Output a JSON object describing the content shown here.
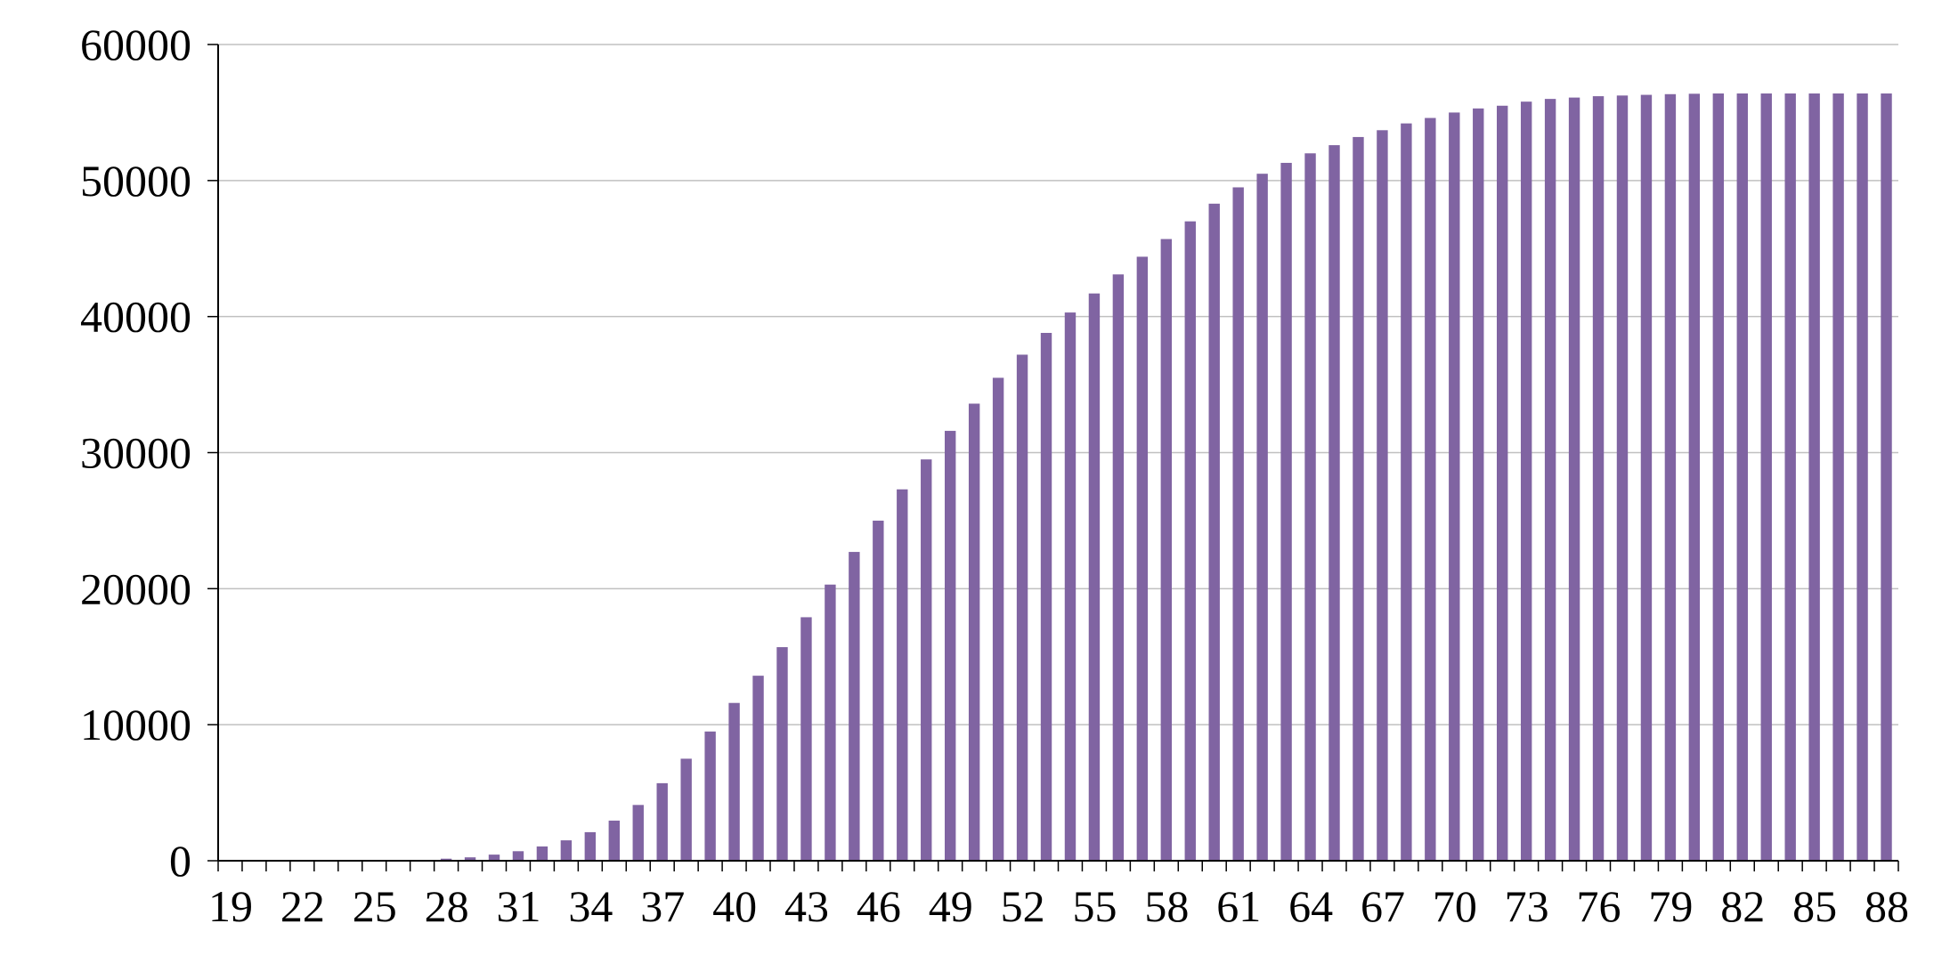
{
  "chart_data": {
    "type": "bar",
    "title": "",
    "xlabel": "",
    "ylabel": "",
    "x": [
      19,
      20,
      21,
      22,
      23,
      24,
      25,
      26,
      27,
      28,
      29,
      30,
      31,
      32,
      33,
      34,
      35,
      36,
      37,
      38,
      39,
      40,
      41,
      42,
      43,
      44,
      45,
      46,
      47,
      48,
      49,
      50,
      51,
      52,
      53,
      54,
      55,
      56,
      57,
      58,
      59,
      60,
      61,
      62,
      63,
      64,
      65,
      66,
      67,
      68,
      69,
      70,
      71,
      72,
      73,
      74,
      75,
      76,
      77,
      78,
      79,
      80,
      81,
      82,
      83,
      84,
      85,
      86,
      87,
      88
    ],
    "x_tick_labels": [
      "19",
      "22",
      "25",
      "28",
      "31",
      "34",
      "37",
      "40",
      "43",
      "46",
      "49",
      "52",
      "55",
      "58",
      "61",
      "64",
      "67",
      "70",
      "73",
      "76",
      "79",
      "82",
      "85",
      "88"
    ],
    "values": [
      0,
      0,
      0,
      0,
      0,
      0,
      0,
      0,
      0,
      150,
      250,
      450,
      700,
      1050,
      1500,
      2100,
      2950,
      4100,
      5700,
      7500,
      9500,
      11600,
      13600,
      15700,
      17900,
      20300,
      22700,
      25000,
      27300,
      29500,
      31600,
      33600,
      35500,
      37200,
      38800,
      40300,
      41700,
      43100,
      44400,
      45700,
      47000,
      48300,
      49500,
      50500,
      51300,
      52000,
      52600,
      53200,
      53700,
      54200,
      54600,
      55000,
      55300,
      55500,
      55800,
      56000,
      56100,
      56200,
      56250,
      56300,
      56350,
      56380,
      56400,
      56400,
      56400,
      56400,
      56400,
      56400,
      56400,
      56400
    ],
    "y_ticks": [
      0,
      10000,
      20000,
      30000,
      40000,
      50000,
      60000
    ],
    "ylim": [
      0,
      60000
    ],
    "grid": true,
    "legend": "none",
    "colors": {
      "bar": "#8064a2",
      "grid": "#c0c0c0",
      "axis": "#000000"
    }
  }
}
